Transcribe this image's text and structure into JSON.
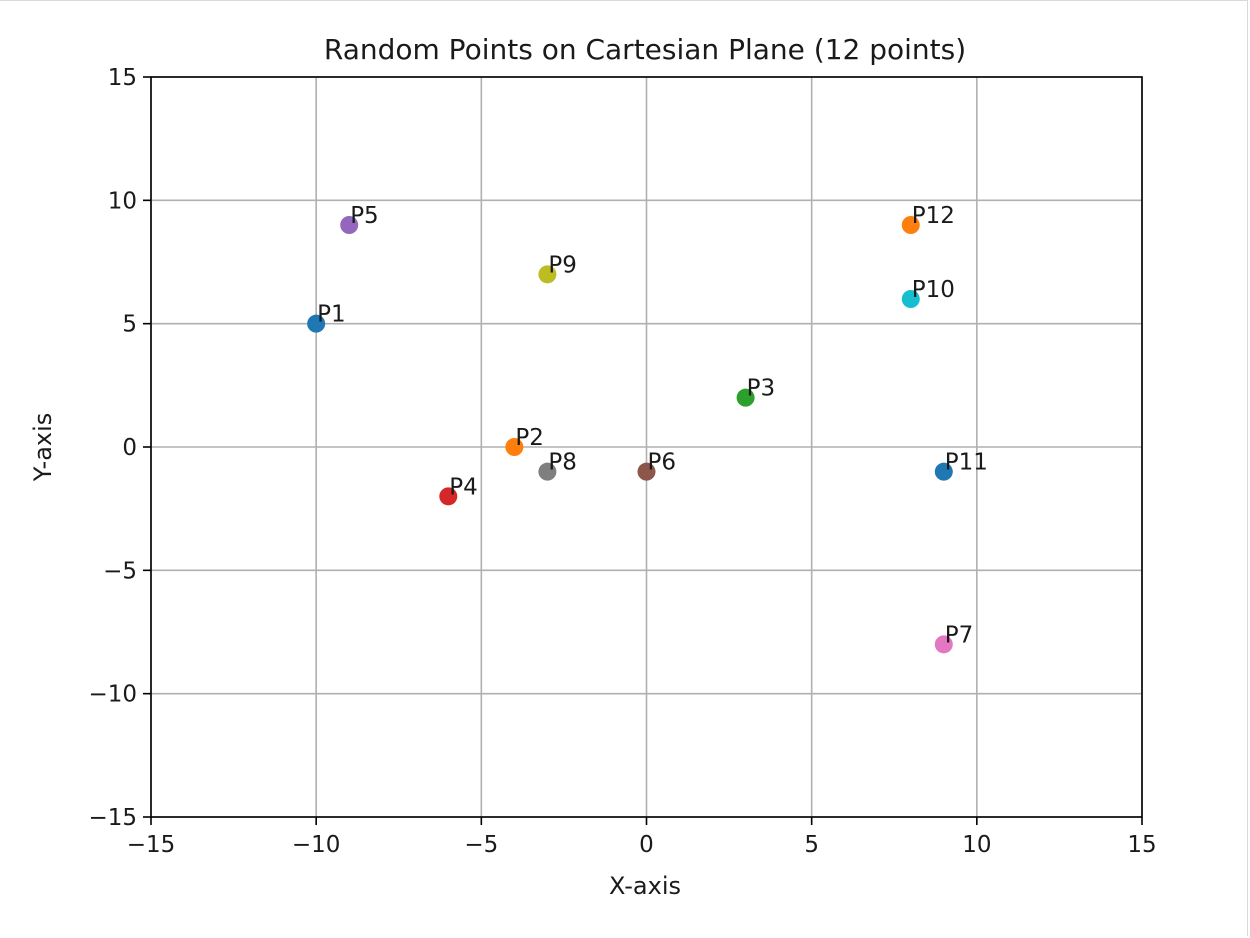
{
  "chart_data": {
    "type": "scatter",
    "title": "Random Points on Cartesian Plane (12 points)",
    "xlabel": "X-axis",
    "ylabel": "Y-axis",
    "xlim": [
      -15,
      15
    ],
    "ylim": [
      -15,
      15
    ],
    "xticks": [
      -15,
      -10,
      -5,
      0,
      5,
      10,
      15
    ],
    "yticks": [
      -15,
      -10,
      -5,
      0,
      5,
      10,
      15
    ],
    "xtick_labels": [
      "−15",
      "−10",
      "−5",
      "0",
      "5",
      "10",
      "15"
    ],
    "ytick_labels": [
      "−15",
      "−10",
      "−5",
      "0",
      "5",
      "10",
      "15"
    ],
    "grid": true,
    "points": [
      {
        "label": "P1",
        "x": -10,
        "y": 5,
        "color": "#1f77b4"
      },
      {
        "label": "P2",
        "x": -4,
        "y": 0,
        "color": "#ff7f0e"
      },
      {
        "label": "P3",
        "x": 3,
        "y": 2,
        "color": "#2ca02c"
      },
      {
        "label": "P4",
        "x": -6,
        "y": -2,
        "color": "#d62728"
      },
      {
        "label": "P5",
        "x": -9,
        "y": 9,
        "color": "#9467bd"
      },
      {
        "label": "P6",
        "x": 0,
        "y": -1,
        "color": "#8c564b"
      },
      {
        "label": "P7",
        "x": 9,
        "y": -8,
        "color": "#e377c2"
      },
      {
        "label": "P8",
        "x": -3,
        "y": -1,
        "color": "#7f7f7f"
      },
      {
        "label": "P9",
        "x": -3,
        "y": 7,
        "color": "#bcbd22"
      },
      {
        "label": "P10",
        "x": 8,
        "y": 6,
        "color": "#17becf"
      },
      {
        "label": "P11",
        "x": 9,
        "y": -1,
        "color": "#1f77b4"
      },
      {
        "label": "P12",
        "x": 8,
        "y": 9,
        "color": "#ff7f0e"
      }
    ]
  }
}
